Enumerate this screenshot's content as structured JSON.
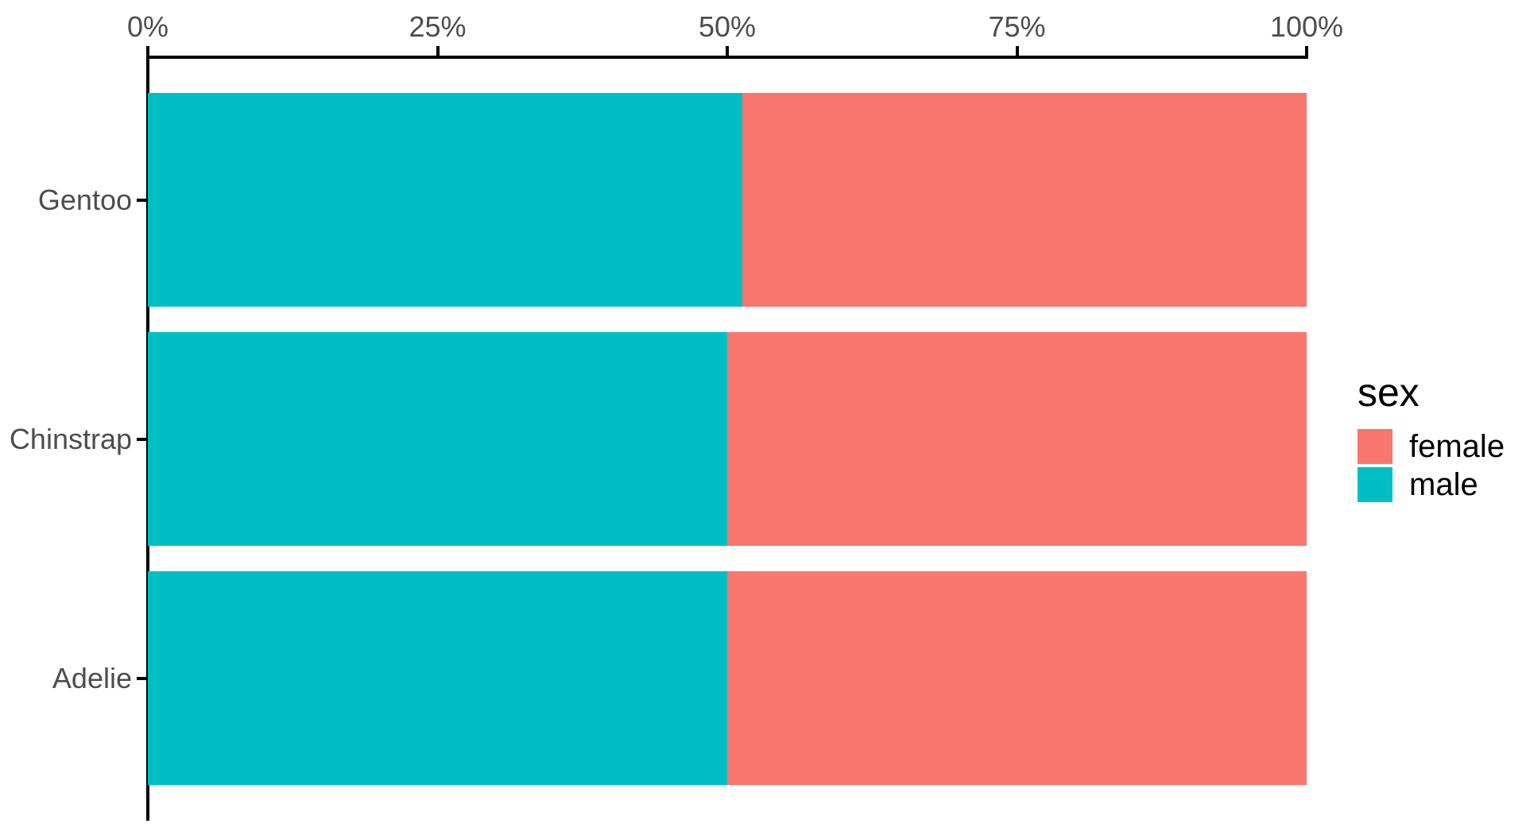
{
  "chart_data": {
    "type": "bar",
    "orientation": "horizontal",
    "stack_mode": "fill-100-percent",
    "title": "",
    "xlabel": "",
    "ylabel": "",
    "categories": [
      "Gentoo",
      "Chinstrap",
      "Adelie"
    ],
    "series": [
      {
        "name": "male",
        "color": "#00BFC4",
        "values": [
          0.513,
          0.5,
          0.5
        ]
      },
      {
        "name": "female",
        "color": "#F8766D",
        "values": [
          0.487,
          0.5,
          0.5
        ]
      }
    ],
    "x_tick_labels": [
      "0%",
      "25%",
      "50%",
      "75%",
      "100%"
    ],
    "x_tick_values": [
      0,
      0.25,
      0.5,
      0.75,
      1
    ],
    "xlim": [
      0,
      1
    ],
    "x_axis_position": "top",
    "grid": false,
    "legend": {
      "title": "sex",
      "position": "right",
      "entries": [
        {
          "label": "female",
          "color": "#F8766D"
        },
        {
          "label": "male",
          "color": "#00BFC4"
        }
      ]
    }
  },
  "colors": {
    "background": "#FFFFFF",
    "axis_line": "#000000",
    "axis_text": "#4D4D4D",
    "legend_text": "#000000",
    "female": "#F8766D",
    "male": "#00BFC4"
  }
}
